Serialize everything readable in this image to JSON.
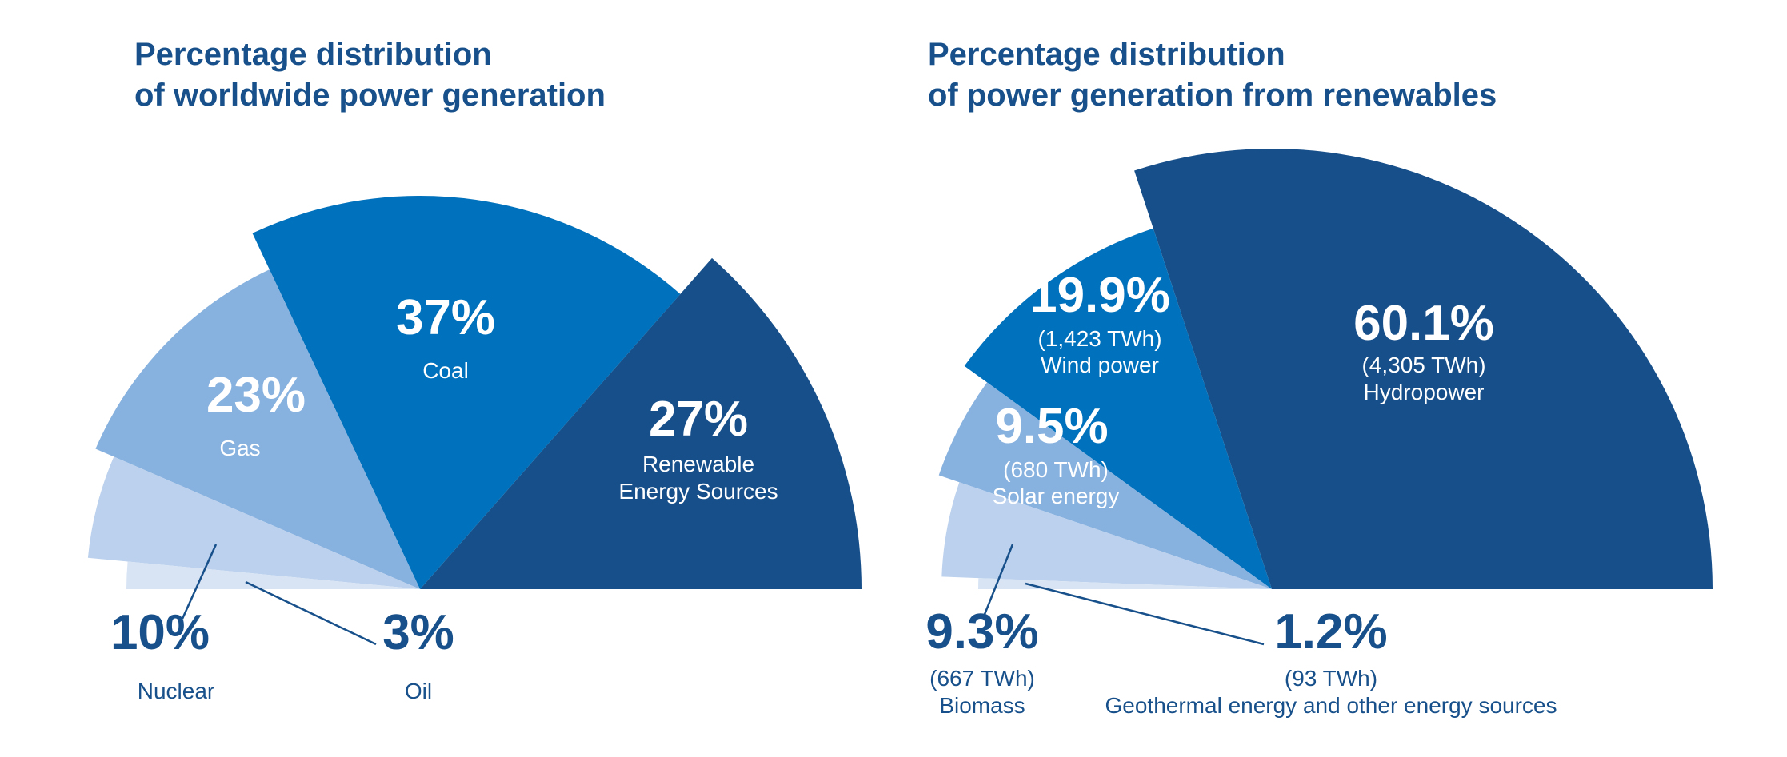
{
  "colors": {
    "text_dark": "#17508a",
    "white": "#ffffff",
    "coal": "#0071bc",
    "renewable": "#174f8a",
    "gas": "#87b1df",
    "nuclear": "#bcd1ed",
    "oil": "#d8e4f4",
    "hydro": "#174f8a",
    "wind": "#0071bc",
    "solar": "#87b1df",
    "biomass": "#bcd1ed",
    "geothermal": "#d8e4f4"
  },
  "chart_data": [
    {
      "type": "pie",
      "title_lines": [
        "Percentage distribution",
        "of worldwide power generation"
      ],
      "slices": [
        {
          "label": "Renewable Energy Sources",
          "label_lines": [
            "Renewable",
            "Energy Sources"
          ],
          "value": 27,
          "pct_text": "27%",
          "color_key": "renewable"
        },
        {
          "label": "Coal",
          "label_lines": [
            "Coal"
          ],
          "value": 37,
          "pct_text": "37%",
          "color_key": "coal"
        },
        {
          "label": "Gas",
          "label_lines": [
            "Gas"
          ],
          "value": 23,
          "pct_text": "23%",
          "color_key": "gas"
        },
        {
          "label": "Nuclear",
          "label_lines": [
            "Nuclear"
          ],
          "value": 10,
          "pct_text": "10%",
          "color_key": "nuclear"
        },
        {
          "label": "Oil",
          "label_lines": [
            "Oil"
          ],
          "value": 3,
          "pct_text": "3%",
          "color_key": "oil"
        }
      ]
    },
    {
      "type": "pie",
      "title_lines": [
        "Percentage distribution",
        "of power generation from renewables"
      ],
      "slices": [
        {
          "label": "Hydropower",
          "label_lines": [
            "(4,305 TWh)",
            "Hydropower"
          ],
          "value": 60.1,
          "twh": 4305,
          "pct_text": "60.1%",
          "color_key": "hydro"
        },
        {
          "label": "Wind power",
          "label_lines": [
            "(1,423 TWh)",
            "Wind power"
          ],
          "value": 19.9,
          "twh": 1423,
          "pct_text": "19.9%",
          "color_key": "wind"
        },
        {
          "label": "Solar energy",
          "label_lines": [
            "(680 TWh)",
            "Solar energy"
          ],
          "value": 9.5,
          "twh": 680,
          "pct_text": "9.5%",
          "color_key": "solar"
        },
        {
          "label": "Biomass",
          "label_lines": [
            "(667 TWh)",
            "Biomass"
          ],
          "value": 9.3,
          "twh": 667,
          "pct_text": "9.3%",
          "color_key": "biomass"
        },
        {
          "label": "Geothermal energy and other energy sources",
          "label_lines": [
            "(93 TWh)",
            "Geothermal energy and other energy sources"
          ],
          "value": 1.2,
          "twh": 93,
          "pct_text": "1.2%",
          "color_key": "geothermal"
        }
      ]
    }
  ]
}
